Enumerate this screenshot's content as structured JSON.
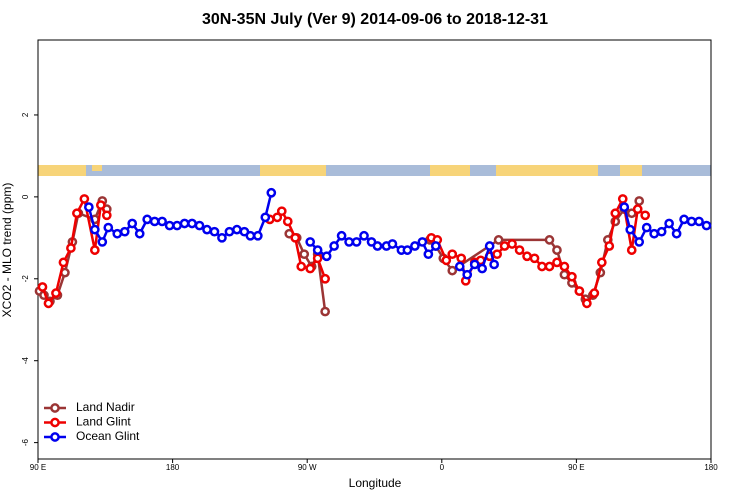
{
  "chart_data": {
    "type": "line",
    "title": "30N-35N July (Ver 9)   2014-09-06 to 2018-12-31",
    "xlabel": "Longitude",
    "ylabel": "XCO2 - MLO trend (ppm)",
    "xlim": [
      90,
      540
    ],
    "xticks": [
      {
        "value": 90,
        "label": "90 E"
      },
      180,
      {
        "value": 270,
        "label": "90 W"
      },
      {
        "value": 360,
        "label": "0"
      },
      {
        "value": 450,
        "label": "90 E"
      },
      {
        "value": 540,
        "label": "180"
      }
    ],
    "ylim": [
      -6.4,
      3.83
    ],
    "yticks": [
      -6,
      -4,
      -2,
      0,
      2
    ],
    "legend": "bottom-left",
    "series": [
      {
        "name": "Land Nadir",
        "color": "#9b3535",
        "x": [
          91,
          94,
          98,
          103,
          108,
          113,
          117,
          128,
          133,
          136,
          null,
          258,
          263,
          268,
          273,
          277,
          282,
          null,
          352,
          356,
          361,
          367,
          398,
          432,
          437,
          442,
          447,
          452,
          456,
          461,
          466,
          471,
          476,
          482,
          487,
          492
        ],
        "values": [
          -2.3,
          -2.4,
          -2.55,
          -2.4,
          -1.85,
          -1.1,
          -0.4,
          -0.55,
          -0.1,
          -0.3,
          null,
          -0.9,
          -1.0,
          -1.4,
          -1.7,
          -1.4,
          -2.8,
          null,
          -1.05,
          -1.2,
          -1.5,
          -1.8,
          -1.05,
          -1.05,
          -1.3,
          -1.9,
          -2.1,
          -2.3,
          -2.5,
          -2.4,
          -1.85,
          -1.05,
          -0.6,
          -0.3,
          -0.4,
          -0.1
        ]
      },
      {
        "name": "Land Glint",
        "color": "#ee0000",
        "x": [
          93,
          97,
          102,
          107,
          112,
          116,
          121,
          128,
          132,
          136,
          null,
          245,
          250,
          253,
          257,
          262,
          266,
          272,
          277,
          282,
          null,
          353,
          357,
          363,
          367,
          373,
          376,
          382,
          386,
          392,
          397,
          402,
          407,
          412,
          417,
          422,
          427,
          432,
          437,
          442,
          447,
          452,
          457,
          462,
          467,
          472,
          476,
          481,
          487,
          491,
          496
        ],
        "values": [
          -2.2,
          -2.6,
          -2.35,
          -1.6,
          -1.25,
          -0.4,
          -0.05,
          -1.3,
          -0.2,
          -0.45,
          null,
          -0.55,
          -0.5,
          -0.35,
          -0.6,
          -1.0,
          -1.7,
          -1.75,
          -1.5,
          -2.0,
          null,
          -1.0,
          -1.05,
          -1.55,
          -1.4,
          -1.5,
          -2.05,
          -1.6,
          -1.55,
          -1.45,
          -1.4,
          -1.2,
          -1.15,
          -1.3,
          -1.45,
          -1.5,
          -1.7,
          -1.7,
          -1.6,
          -1.7,
          -1.95,
          -2.3,
          -2.6,
          -2.35,
          -1.6,
          -1.2,
          -0.4,
          -0.05,
          -1.3,
          -0.3,
          -0.45
        ]
      },
      {
        "name": "Ocean Glint",
        "color": "#0000ee",
        "x": [
          124,
          128,
          133,
          137,
          143,
          148,
          153,
          158,
          163,
          168,
          173,
          178,
          183,
          188,
          193,
          198,
          203,
          208,
          213,
          218,
          223,
          228,
          232,
          237,
          242,
          246,
          null,
          272,
          277,
          283,
          288,
          293,
          298,
          303,
          308,
          313,
          317,
          323,
          327,
          333,
          337,
          342,
          347,
          351,
          356,
          null,
          372,
          377,
          382,
          387,
          392,
          395,
          null,
          482,
          486,
          492,
          497,
          502,
          507,
          512,
          517,
          522,
          527,
          532,
          537
        ],
        "values": [
          -0.25,
          -0.8,
          -1.1,
          -0.75,
          -0.9,
          -0.85,
          -0.65,
          -0.9,
          -0.55,
          -0.6,
          -0.6,
          -0.7,
          -0.7,
          -0.65,
          -0.65,
          -0.7,
          -0.8,
          -0.85,
          -1.0,
          -0.85,
          -0.8,
          -0.85,
          -0.95,
          -0.95,
          -0.5,
          0.1,
          null,
          -1.1,
          -1.3,
          -1.45,
          -1.2,
          -0.95,
          -1.1,
          -1.1,
          -0.95,
          -1.1,
          -1.2,
          -1.2,
          -1.15,
          -1.3,
          -1.3,
          -1.2,
          -1.1,
          -1.4,
          -1.2,
          null,
          -1.7,
          -1.9,
          -1.65,
          -1.75,
          -1.2,
          -1.65,
          null,
          -0.25,
          -0.8,
          -1.1,
          -0.75,
          -0.9,
          -0.85,
          -0.65,
          -0.9,
          -0.55,
          -0.6,
          -0.6,
          -0.7
        ]
      }
    ]
  }
}
